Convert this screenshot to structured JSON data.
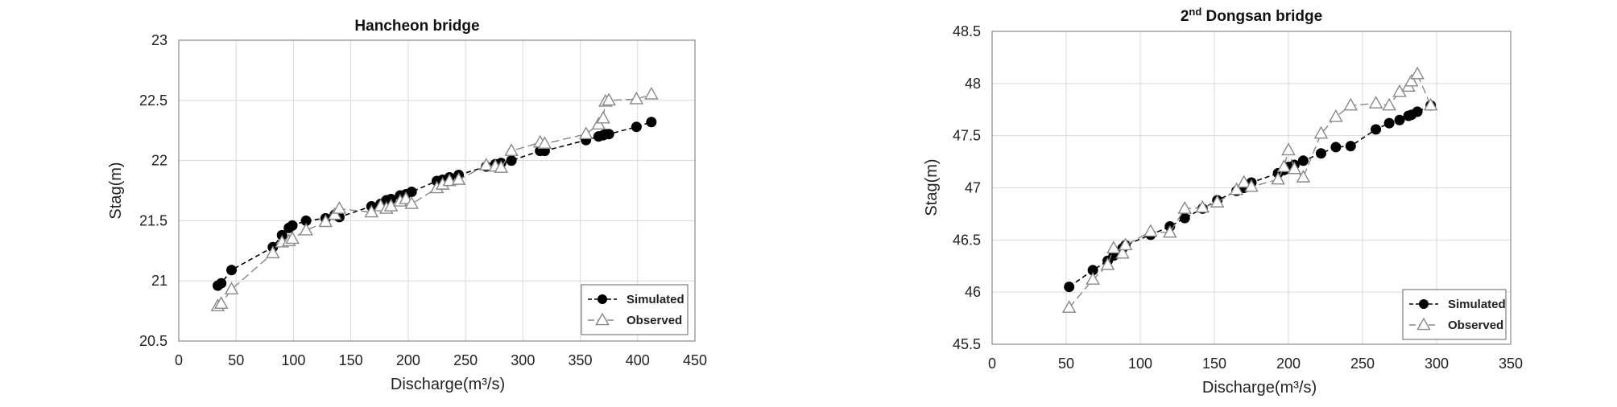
{
  "chart_data": [
    {
      "type": "line",
      "title": "Hancheon bridge",
      "xlabel": "Discharge(m³/s)",
      "ylabel": "Stag(m)",
      "xlim": [
        0,
        450
      ],
      "ylim": [
        20.5,
        23
      ],
      "xticks": [
        0,
        50,
        100,
        150,
        200,
        250,
        300,
        350,
        400,
        450
      ],
      "yticks": [
        20.5,
        21,
        21.5,
        22,
        22.5,
        23
      ],
      "grid": true,
      "legend": "bottom-right",
      "series": [
        {
          "name": "Simulated",
          "marker": "filled-circle",
          "color": "#000000",
          "x": [
            34,
            37,
            46,
            82,
            90,
            96,
            99,
            111,
            128,
            136,
            140,
            168,
            176,
            181,
            185,
            193,
            198,
            203,
            225,
            230,
            236,
            244,
            268,
            276,
            281,
            290,
            315,
            319,
            355,
            366,
            370,
            372,
            375,
            399,
            412
          ],
          "y": [
            20.96,
            20.98,
            21.09,
            21.28,
            21.38,
            21.44,
            21.46,
            21.5,
            21.52,
            21.55,
            21.53,
            21.62,
            21.64,
            21.67,
            21.68,
            21.71,
            21.72,
            21.74,
            21.83,
            21.84,
            21.86,
            21.88,
            21.95,
            21.97,
            21.98,
            22.0,
            22.08,
            22.08,
            22.17,
            22.2,
            22.21,
            22.22,
            22.22,
            22.28,
            22.32
          ]
        },
        {
          "name": "Observed",
          "marker": "open-triangle",
          "color": "#888888",
          "x": [
            34,
            37,
            46,
            82,
            90,
            96,
            99,
            111,
            128,
            136,
            140,
            168,
            176,
            181,
            185,
            193,
            198,
            203,
            225,
            230,
            236,
            244,
            268,
            276,
            281,
            290,
            315,
            319,
            355,
            366,
            370,
            372,
            375,
            399,
            412
          ],
          "y": [
            20.79,
            20.81,
            20.93,
            21.23,
            21.32,
            21.33,
            21.35,
            21.42,
            21.49,
            21.55,
            21.6,
            21.57,
            21.62,
            21.6,
            21.62,
            21.66,
            21.68,
            21.64,
            21.77,
            21.8,
            21.83,
            21.84,
            21.96,
            21.95,
            21.94,
            22.08,
            22.15,
            22.14,
            22.22,
            22.3,
            22.35,
            22.49,
            22.5,
            22.51,
            22.55
          ]
        }
      ]
    },
    {
      "type": "line",
      "title_prefix": "2",
      "title_sup": "nd",
      "title_suffix": " Dongsan bridge",
      "xlabel": "Discharge(m³/s)",
      "ylabel": "Stag(m)",
      "xlim": [
        0,
        350
      ],
      "ylim": [
        45.5,
        48.5
      ],
      "xticks": [
        0,
        50,
        100,
        150,
        200,
        250,
        300,
        350
      ],
      "yticks": [
        45.5,
        46,
        46.5,
        47,
        47.5,
        48,
        48.5
      ],
      "grid": true,
      "legend": "bottom-right",
      "series": [
        {
          "name": "Simulated",
          "marker": "filled-circle",
          "color": "#000000",
          "x": [
            52,
            68,
            78,
            82,
            88,
            90,
            107,
            120,
            130,
            142,
            152,
            165,
            170,
            175,
            193,
            197,
            200,
            204,
            210,
            222,
            232,
            242,
            259,
            268,
            275,
            281,
            283,
            287,
            296
          ],
          "y": [
            46.05,
            46.21,
            46.3,
            46.35,
            46.42,
            46.45,
            46.55,
            46.63,
            46.71,
            46.8,
            46.88,
            46.97,
            47.0,
            47.05,
            47.14,
            47.17,
            47.2,
            47.22,
            47.26,
            47.33,
            47.39,
            47.4,
            47.56,
            47.62,
            47.65,
            47.69,
            47.7,
            47.73,
            47.79
          ]
        },
        {
          "name": "Observed",
          "marker": "open-triangle",
          "color": "#888888",
          "x": [
            52,
            68,
            78,
            82,
            88,
            90,
            107,
            120,
            130,
            142,
            152,
            165,
            170,
            175,
            193,
            197,
            200,
            204,
            210,
            222,
            232,
            242,
            259,
            268,
            275,
            281,
            283,
            287,
            296
          ],
          "y": [
            45.85,
            46.12,
            46.26,
            46.42,
            46.37,
            46.45,
            46.58,
            46.57,
            46.8,
            46.81,
            46.86,
            46.98,
            47.05,
            47.01,
            47.08,
            47.2,
            47.36,
            47.18,
            47.1,
            47.52,
            47.68,
            47.79,
            47.81,
            47.79,
            47.92,
            47.97,
            48.02,
            48.09,
            47.79
          ]
        }
      ]
    }
  ],
  "legend_labels": {
    "simulated": "Simulated",
    "observed": "Observed"
  }
}
